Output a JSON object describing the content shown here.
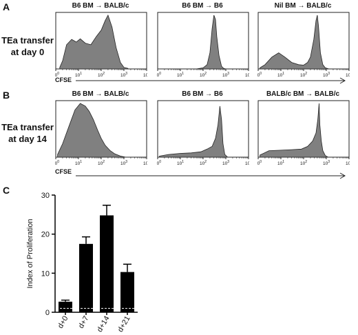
{
  "panels": {
    "a": {
      "letter": "A",
      "row_label": [
        "TEa transfer",
        "at day 0"
      ],
      "axis_label": "CFSE",
      "histograms": [
        {
          "title": "B6 BM → BALB/c"
        },
        {
          "title": "B6  BM → B6"
        },
        {
          "title": "Nil BM → BALB/c"
        }
      ]
    },
    "b": {
      "letter": "B",
      "row_label": [
        "TEa transfer",
        "at day 14"
      ],
      "axis_label": "CFSE",
      "histograms": [
        {
          "title": "B6 BM → BALB/c"
        },
        {
          "title": "B6 BM → B6"
        },
        {
          "title": "BALB/c BM → BALB/c"
        }
      ]
    },
    "c": {
      "letter": "C"
    }
  },
  "colors": {
    "fill": "#808080",
    "line": "#222222",
    "bar": "#000000"
  },
  "chart_data": [
    {
      "type": "area",
      "panel": "A",
      "title": "B6 BM → BALB/c",
      "x_scale": "log",
      "xlim": [
        1,
        10000
      ],
      "tick_labels": [
        "10^0",
        "10^1",
        "10^2",
        "10^3",
        "10^4"
      ],
      "x": [
        1.5,
        2,
        3,
        5,
        8,
        12,
        20,
        35,
        60,
        100,
        150,
        200,
        300,
        450,
        700,
        1000,
        1500
      ],
      "y": [
        0.03,
        0.15,
        0.45,
        0.55,
        0.5,
        0.56,
        0.48,
        0.45,
        0.6,
        0.72,
        0.9,
        1.0,
        0.78,
        0.4,
        0.12,
        0.03,
        0.01
      ]
    },
    {
      "type": "area",
      "panel": "A",
      "title": "B6  BM → B6",
      "x_scale": "log",
      "xlim": [
        1,
        10000
      ],
      "tick_labels": [
        "10^0",
        "10^1",
        "10^2",
        "10^3",
        "10^4"
      ],
      "x": [
        50,
        100,
        150,
        200,
        250,
        300,
        350,
        400,
        500,
        650,
        800,
        1000
      ],
      "y": [
        0.0,
        0.02,
        0.08,
        0.3,
        0.75,
        1.0,
        0.92,
        0.6,
        0.25,
        0.05,
        0.01,
        0.0
      ]
    },
    {
      "type": "area",
      "panel": "A",
      "title": "Nil BM → BALB/c",
      "x_scale": "log",
      "xlim": [
        1,
        10000
      ],
      "tick_labels": [
        "10^0",
        "10^1",
        "10^2",
        "10^3",
        "10^4"
      ],
      "x": [
        1.2,
        2,
        4,
        8,
        15,
        30,
        60,
        100,
        150,
        200,
        280,
        350,
        400,
        450,
        550,
        700,
        900,
        1300
      ],
      "y": [
        0.02,
        0.08,
        0.22,
        0.3,
        0.22,
        0.12,
        0.08,
        0.07,
        0.12,
        0.22,
        0.55,
        0.9,
        1.0,
        0.8,
        0.3,
        0.08,
        0.02,
        0.0
      ]
    },
    {
      "type": "area",
      "panel": "B",
      "title": "B6 BM → BALB/c",
      "x_scale": "log",
      "xlim": [
        1,
        10000
      ],
      "tick_labels": [
        "10^0",
        "10^1",
        "10^2",
        "10^3",
        "10^4"
      ],
      "x": [
        1.2,
        2,
        4,
        7,
        12,
        20,
        30,
        45,
        70,
        100,
        150,
        250,
        400,
        700,
        1200
      ],
      "y": [
        0.05,
        0.25,
        0.6,
        0.88,
        1.0,
        0.95,
        0.85,
        0.7,
        0.5,
        0.35,
        0.22,
        0.12,
        0.06,
        0.02,
        0.0
      ]
    },
    {
      "type": "area",
      "panel": "B",
      "title": "B6 BM → B6",
      "x_scale": "log",
      "xlim": [
        1,
        10000
      ],
      "tick_labels": [
        "10^0",
        "10^1",
        "10^2",
        "10^3",
        "10^4"
      ],
      "x": [
        1.2,
        3,
        10,
        30,
        80,
        150,
        250,
        350,
        450,
        550,
        650,
        750,
        900,
        1200
      ],
      "y": [
        0.02,
        0.05,
        0.07,
        0.08,
        0.1,
        0.15,
        0.2,
        0.35,
        0.6,
        0.95,
        0.7,
        0.25,
        0.05,
        0.0
      ]
    },
    {
      "type": "area",
      "panel": "B",
      "title": "BALB/c BM → BALB/c",
      "x_scale": "log",
      "xlim": [
        1,
        10000
      ],
      "tick_labels": [
        "10^0",
        "10^1",
        "10^2",
        "10^3",
        "10^4"
      ],
      "x": [
        1.2,
        3,
        10,
        30,
        80,
        150,
        250,
        350,
        420,
        480,
        520,
        600,
        700,
        900,
        1200
      ],
      "y": [
        0.04,
        0.12,
        0.13,
        0.14,
        0.15,
        0.2,
        0.3,
        0.45,
        0.7,
        1.0,
        0.6,
        0.3,
        0.12,
        0.03,
        0.0
      ]
    },
    {
      "type": "bar",
      "panel": "C",
      "title": "",
      "xlabel": "",
      "ylabel": "Index of Proliferation",
      "ylim": [
        0,
        30
      ],
      "yticks": [
        0,
        10,
        20,
        30
      ],
      "categories": [
        "d+0",
        "d+7",
        "d+14",
        "d+21"
      ],
      "values": [
        2.7,
        17.5,
        24.8,
        10.3
      ],
      "errors": [
        0.4,
        1.8,
        2.6,
        2.0
      ],
      "reference_line": 1.0
    }
  ]
}
